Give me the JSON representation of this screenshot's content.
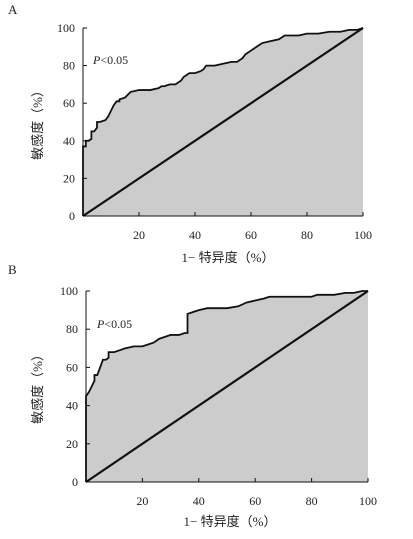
{
  "chart_data": [
    {
      "type": "area",
      "panel": "A",
      "annotation": "P<0.05",
      "annotation_italic": "P",
      "annotation_rest": "<0.05",
      "xlabel": "1− 特异度（%）",
      "ylabel": "敏感度（%）",
      "xlim": [
        0,
        100
      ],
      "ylim": [
        0,
        100
      ],
      "xticks": [
        20,
        40,
        60,
        80,
        100
      ],
      "yticks": [
        0,
        20,
        40,
        60,
        80,
        100
      ],
      "series": [
        {
          "x": [
            0,
            0,
            1,
            1,
            2,
            3,
            3,
            4,
            5,
            5,
            6,
            8,
            9,
            10,
            11,
            12,
            13,
            13,
            15,
            17,
            20,
            24,
            27,
            28,
            29,
            31,
            33,
            34,
            35,
            36,
            38,
            40,
            42,
            43,
            44,
            47,
            50,
            53,
            55,
            57,
            58,
            60,
            62,
            64,
            67,
            70,
            72,
            75,
            77,
            80,
            84,
            88,
            92,
            95,
            98,
            100
          ],
          "y": [
            0,
            37,
            37,
            40,
            40,
            41,
            45,
            45,
            47,
            50,
            50,
            51,
            53,
            56,
            59,
            61,
            61,
            62,
            63,
            66,
            67,
            67,
            68,
            69,
            69,
            70,
            70,
            71,
            72,
            74,
            76,
            76,
            77,
            78,
            80,
            80,
            81,
            82,
            82,
            84,
            86,
            88,
            90,
            92,
            93,
            94,
            96,
            96,
            96,
            97,
            97,
            98,
            98,
            99,
            99,
            100
          ]
        },
        {
          "x": [
            0,
            100
          ],
          "y": [
            0,
            100
          ]
        }
      ]
    },
    {
      "type": "area",
      "panel": "B",
      "annotation": "P<0.05",
      "annotation_italic": "P",
      "annotation_rest": "<0.05",
      "xlabel": "1− 特异度（%）",
      "ylabel": "敏感度（%）",
      "xlim": [
        0,
        100
      ],
      "ylim": [
        0,
        100
      ],
      "xticks": [
        20,
        40,
        60,
        80,
        100
      ],
      "yticks": [
        0,
        20,
        40,
        60,
        80,
        100
      ],
      "series": [
        {
          "x": [
            0,
            0,
            1,
            2,
            3,
            3,
            4,
            5,
            5,
            6,
            7,
            8,
            8,
            10,
            12,
            14,
            17,
            20,
            22,
            24,
            26,
            28,
            30,
            33,
            35,
            36,
            36,
            38,
            40,
            43,
            46,
            50,
            54,
            57,
            60,
            63,
            65,
            70,
            75,
            80,
            82,
            84,
            88,
            92,
            95,
            98,
            100
          ],
          "y": [
            0,
            45,
            47,
            50,
            53,
            56,
            56,
            60,
            60,
            64,
            64,
            65,
            68,
            68,
            69,
            70,
            71,
            71,
            72,
            73,
            75,
            76,
            77,
            77,
            78,
            78,
            88,
            89,
            90,
            91,
            91,
            91,
            92,
            94,
            95,
            96,
            97,
            97,
            97,
            97,
            98,
            98,
            98,
            99,
            99,
            100,
            100
          ]
        },
        {
          "x": [
            0,
            100
          ],
          "y": [
            0,
            100
          ]
        }
      ]
    }
  ]
}
